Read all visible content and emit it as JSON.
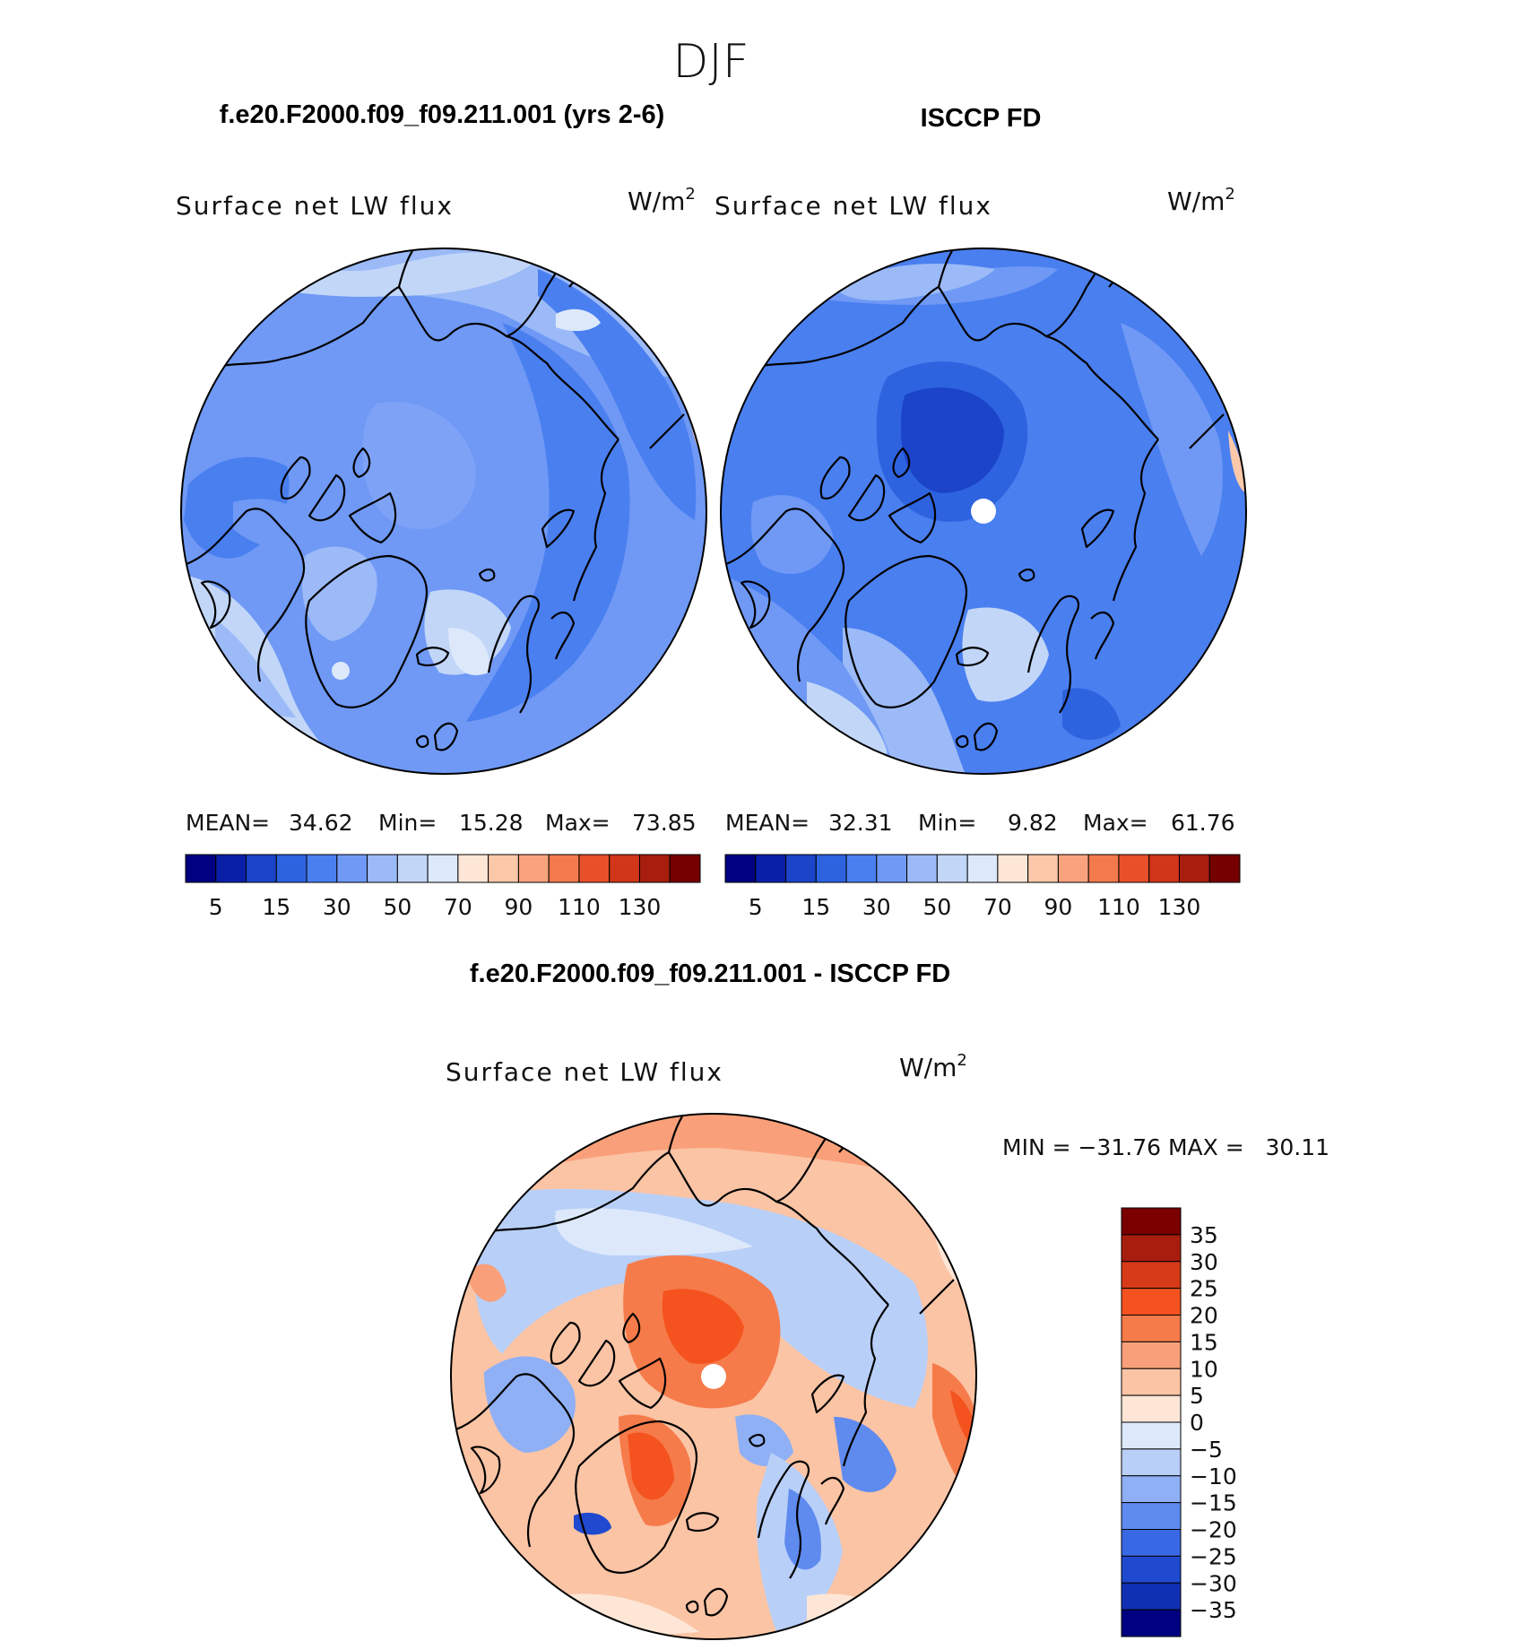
{
  "figure": {
    "season": "DJF",
    "panel_left_title": "f.e20.F2000.f09_f09.211.001 (yrs 2-6)",
    "panel_right_title": "ISCCP FD",
    "diff_title": "f.e20.F2000.f09_f09.211.001 - ISCCP FD"
  },
  "chart_data": [
    {
      "type": "heatmap",
      "panel": "model",
      "title": "f.e20.F2000.f09_f09.211.001 (yrs 2-6)",
      "variable": "Surface net LW flux",
      "units": "W/m²",
      "units_base": "W/m",
      "units_exp": "2",
      "projection": "north polar stereographic",
      "stats": {
        "mean_label": "MEAN=",
        "mean": "34.62",
        "min_label": "Min=",
        "min": "15.28",
        "max_label": "Max=",
        "max": "73.85"
      },
      "levels": [
        5,
        10,
        15,
        20,
        30,
        40,
        50,
        60,
        70,
        80,
        90,
        100,
        110,
        120,
        130
      ],
      "tick_labels": [
        "5",
        "15",
        "30",
        "50",
        "70",
        "90",
        "110",
        "130"
      ],
      "colors": [
        "#000080",
        "#0a1fa8",
        "#1b44c9",
        "#2e63e0",
        "#4a7ff0",
        "#6f99f5",
        "#9cbaf7",
        "#c2d6f8",
        "#dde9fb",
        "#fde6d6",
        "#fcc8aa",
        "#f8a37d",
        "#f27a4d",
        "#e8502a",
        "#d1351a",
        "#a81e0e",
        "#760000"
      ]
    },
    {
      "type": "heatmap",
      "panel": "obs",
      "title": "ISCCP FD",
      "variable": "Surface net LW flux",
      "units": "W/m²",
      "units_base": "W/m",
      "units_exp": "2",
      "projection": "north polar stereographic",
      "stats": {
        "mean_label": "MEAN=",
        "mean": "32.31",
        "min_label": "Min=",
        "min": "9.82",
        "max_label": "Max=",
        "max": "61.76"
      },
      "levels": [
        5,
        10,
        15,
        20,
        30,
        40,
        50,
        60,
        70,
        80,
        90,
        100,
        110,
        120,
        130
      ],
      "tick_labels": [
        "5",
        "15",
        "30",
        "50",
        "70",
        "90",
        "110",
        "130"
      ],
      "colors": [
        "#000080",
        "#0a1fa8",
        "#1b44c9",
        "#2e63e0",
        "#4a7ff0",
        "#6f99f5",
        "#9cbaf7",
        "#c2d6f8",
        "#dde9fb",
        "#fde6d6",
        "#fcc8aa",
        "#f8a37d",
        "#f27a4d",
        "#e8502a",
        "#d1351a",
        "#a81e0e",
        "#760000"
      ]
    },
    {
      "type": "heatmap",
      "panel": "difference",
      "title": "f.e20.F2000.f09_f09.211.001 - ISCCP FD",
      "variable": "Surface net LW flux",
      "units": "W/m²",
      "units_base": "W/m",
      "units_exp": "2",
      "projection": "north polar stereographic",
      "stats_text": "MIN = −31.76 MAX =   30.11",
      "min": -31.76,
      "max": 30.11,
      "levels": [
        35,
        30,
        25,
        20,
        15,
        10,
        5,
        0,
        -5,
        -10,
        -15,
        -20,
        -25,
        -30,
        -35
      ],
      "tick_labels": [
        "35",
        "30",
        "25",
        "20",
        "15",
        "10",
        "5",
        "0",
        "−5",
        "−10",
        "−15",
        "−20",
        "−25",
        "−30",
        "−35"
      ],
      "colors_top_to_bottom": [
        "#7a0000",
        "#a81e0e",
        "#d63a16",
        "#f4531f",
        "#f67b4a",
        "#f9a07a",
        "#fbc4a5",
        "#fde6d6",
        "#dde9fb",
        "#b8cff8",
        "#8fb0f5",
        "#5f8bef",
        "#3868e3",
        "#1f49cf",
        "#1030b3",
        "#000080"
      ]
    }
  ]
}
